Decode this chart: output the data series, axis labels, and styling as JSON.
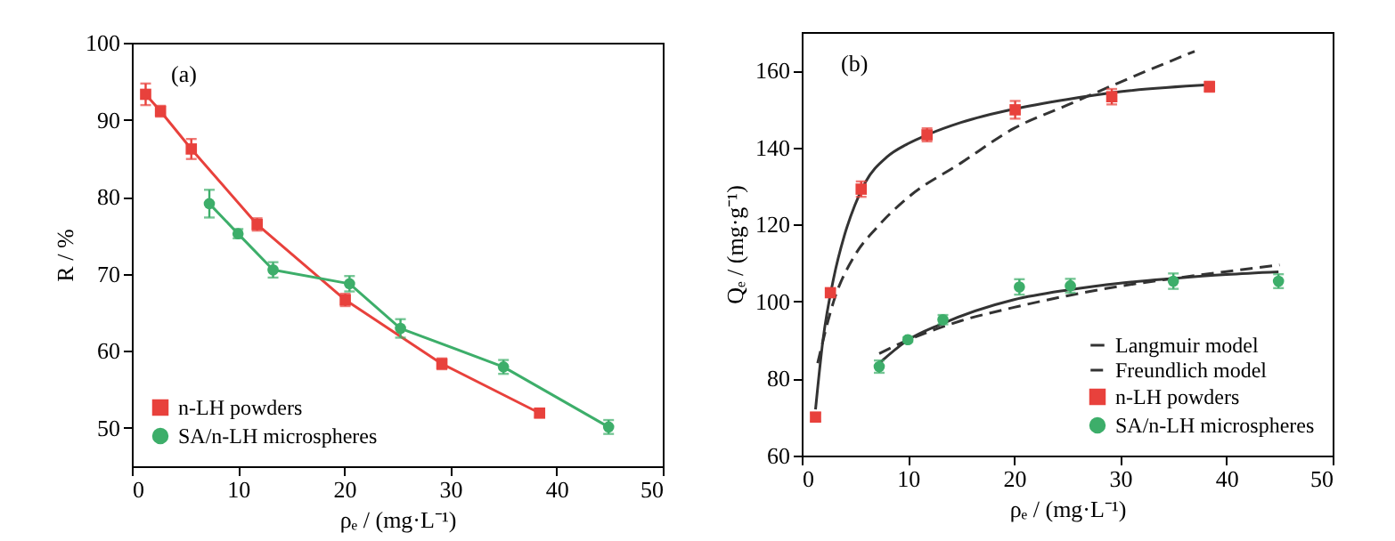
{
  "chart_data": [
    {
      "type": "line",
      "xlabel": "ρₑ / (mg·L⁻¹)",
      "ylabel": "R / %",
      "annotations": [
        "(a)"
      ],
      "xlim": [
        0,
        50
      ],
      "xticks": [
        0,
        10,
        20,
        30,
        40,
        50
      ],
      "ylim": [
        45,
        100
      ],
      "yticks": [
        50,
        60,
        70,
        80,
        90,
        100
      ],
      "grid": false,
      "legend": "bottom left",
      "series": [
        {
          "name": "n-LH powders",
          "color": "#e8413c",
          "marker": "square",
          "x": [
            1.3,
            2.7,
            5.6,
            11.8,
            20.1,
            29.2,
            38.4
          ],
          "values": [
            93.3,
            91.1,
            86.2,
            76.4,
            66.6,
            58.3,
            51.9
          ],
          "errors": [
            1.4,
            0.7,
            1.3,
            0.8,
            0.8,
            0.7,
            0.5
          ]
        },
        {
          "name": "SA/n-LH microspheres",
          "color": "#3dae6a",
          "marker": "circle",
          "x": [
            7.3,
            10,
            13.3,
            20.5,
            25.3,
            35,
            44.9
          ],
          "values": [
            79.1,
            75.2,
            70.5,
            68.7,
            62.9,
            57.9,
            50.1
          ],
          "errors": [
            1.8,
            0.6,
            1.0,
            1.0,
            1.2,
            0.9,
            0.9
          ]
        }
      ]
    },
    {
      "type": "scatter",
      "xlabel": "ρₑ / (mg·L⁻¹)",
      "ylabel": "Qₑ / (mg·g⁻¹)",
      "annotations": [
        "(b)"
      ],
      "xlim": [
        0,
        50
      ],
      "xticks": [
        0,
        10,
        20,
        30,
        40,
        50
      ],
      "ylim": [
        60,
        170
      ],
      "yticks": [
        60,
        80,
        100,
        120,
        140,
        160
      ],
      "grid": false,
      "legend": "bottom right",
      "series": [
        {
          "name": "Langmuir model",
          "type": "line",
          "color": "#333333",
          "line_style": "solid",
          "marker": "none",
          "x": [
            1.3,
            2,
            3,
            4,
            5,
            6,
            8,
            10,
            12,
            15,
            20,
            25,
            30,
            38.4
          ],
          "values": [
            72,
            90,
            106,
            117,
            125,
            131,
            137.5,
            141,
            143.5,
            146.5,
            150,
            152.5,
            154.5,
            156.3
          ]
        },
        {
          "name": "Freundlich model",
          "type": "line",
          "color": "#333333",
          "line_style": "dashed",
          "marker": "none",
          "x": [
            1.5,
            3,
            5,
            7,
            10,
            15,
            20,
            25,
            30,
            37
          ],
          "values": [
            84,
            100,
            112,
            119,
            127,
            136,
            145,
            151,
            157,
            165
          ]
        },
        {
          "type": "line",
          "color": "#333333",
          "line_style": "solid",
          "marker": "none",
          "x": [
            7.3,
            10,
            13,
            20,
            25,
            30,
            35,
            40,
            44.9
          ],
          "values": [
            84,
            90,
            94,
            100.5,
            103,
            104.8,
            106,
            107,
            107.7
          ]
        },
        {
          "type": "line",
          "color": "#333333",
          "line_style": "dashed",
          "marker": "none",
          "x": [
            7.3,
            10,
            15,
            20,
            25,
            30,
            35,
            40,
            45
          ],
          "values": [
            86.5,
            90,
            95,
            98.5,
            101.5,
            104,
            106,
            107.8,
            109.5
          ]
        },
        {
          "name": "n-LH powders",
          "color": "#e8413c",
          "marker": "square",
          "x": [
            1.3,
            2.7,
            5.6,
            11.8,
            20.1,
            29.2,
            38.4
          ],
          "values": [
            70,
            102.3,
            129.2,
            143.3,
            149.8,
            153.2,
            155.8
          ],
          "errors": [
            1,
            0.8,
            2,
            1.7,
            2.3,
            2,
            1.3
          ]
        },
        {
          "name": "SA/n-LH microspheres",
          "color": "#3dae6a",
          "marker": "circle",
          "x": [
            7.3,
            10,
            13.3,
            20.5,
            25.3,
            35,
            44.9
          ],
          "values": [
            83.1,
            90.1,
            95.3,
            103.8,
            104.1,
            105.3,
            105.3
          ],
          "errors": [
            1.6,
            0.6,
            1.2,
            2,
            1.8,
            2,
            1.8
          ]
        }
      ]
    }
  ]
}
